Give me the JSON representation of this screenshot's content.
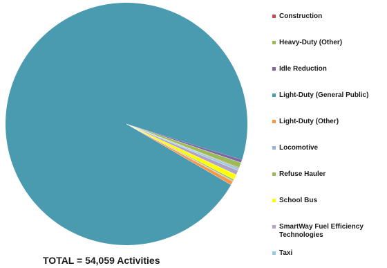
{
  "chart_data": {
    "type": "pie",
    "total_label": "TOTAL = 54,059 Activities",
    "legend_position": "right",
    "categories": [
      "Construction",
      "Heavy-Duty (Other)",
      "Idle Reduction",
      "Light-Duty (General Public)",
      "Light-Duty (Other)",
      "Locomotive",
      "Refuse Hauler",
      "School Bus",
      "SmartWay Fuel Efficiency Technologies",
      "Taxi"
    ],
    "legend_lines": [
      [
        "Construction"
      ],
      [
        "Heavy-Duty (Other)"
      ],
      [
        "Idle Reduction"
      ],
      [
        "Light-Duty (General Public)"
      ],
      [
        "Light-Duty (Other)"
      ],
      [
        "Locomotive"
      ],
      [
        "Refuse Hauler"
      ],
      [
        "School Bus"
      ],
      [
        "SmartWay Fuel Efficiency",
        "Technologies"
      ],
      [
        "Taxi"
      ]
    ],
    "values": [
      0.1,
      0.7,
      0.4,
      96.4,
      0.5,
      0.1,
      0.2,
      0.7,
      0.6,
      0.3
    ],
    "colors": [
      "#c0504d",
      "#9bbb59",
      "#8064a2",
      "#4a9bb0",
      "#f79646",
      "#95b3d7",
      "#9bbb59",
      "#ffff00",
      "#b2a1c7",
      "#93cddd"
    ]
  }
}
